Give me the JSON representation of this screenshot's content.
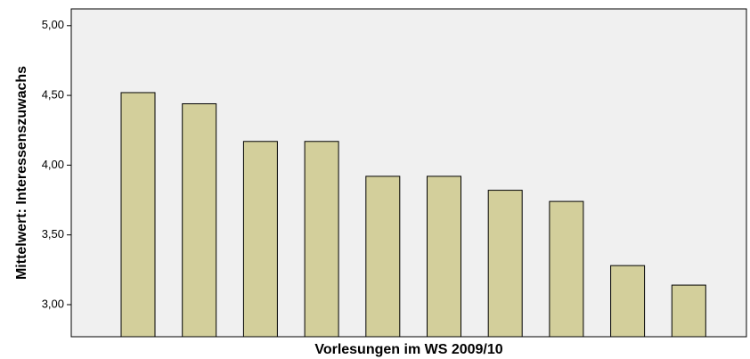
{
  "chart_data": {
    "type": "bar",
    "x_label": "Vorlesungen im WS 2009/10",
    "y_label": "Mittelwert: Interessenszuwachs",
    "categories": [
      null,
      null,
      null,
      null,
      null,
      null,
      null,
      null,
      null,
      null
    ],
    "values": [
      4.52,
      4.44,
      4.17,
      4.17,
      3.92,
      3.92,
      3.82,
      3.74,
      3.28,
      3.14
    ],
    "color": "#d3cf9b",
    "ylim": [
      2.77,
      5.12
    ],
    "yticks": [
      {
        "value": 3,
        "label": "3,00"
      },
      {
        "value": 3.5,
        "label": "3,50"
      },
      {
        "value": 4,
        "label": "4,00"
      },
      {
        "value": 4.5,
        "label": "4,50"
      },
      {
        "value": 5,
        "label": "5,00"
      }
    ],
    "grid": false
  }
}
